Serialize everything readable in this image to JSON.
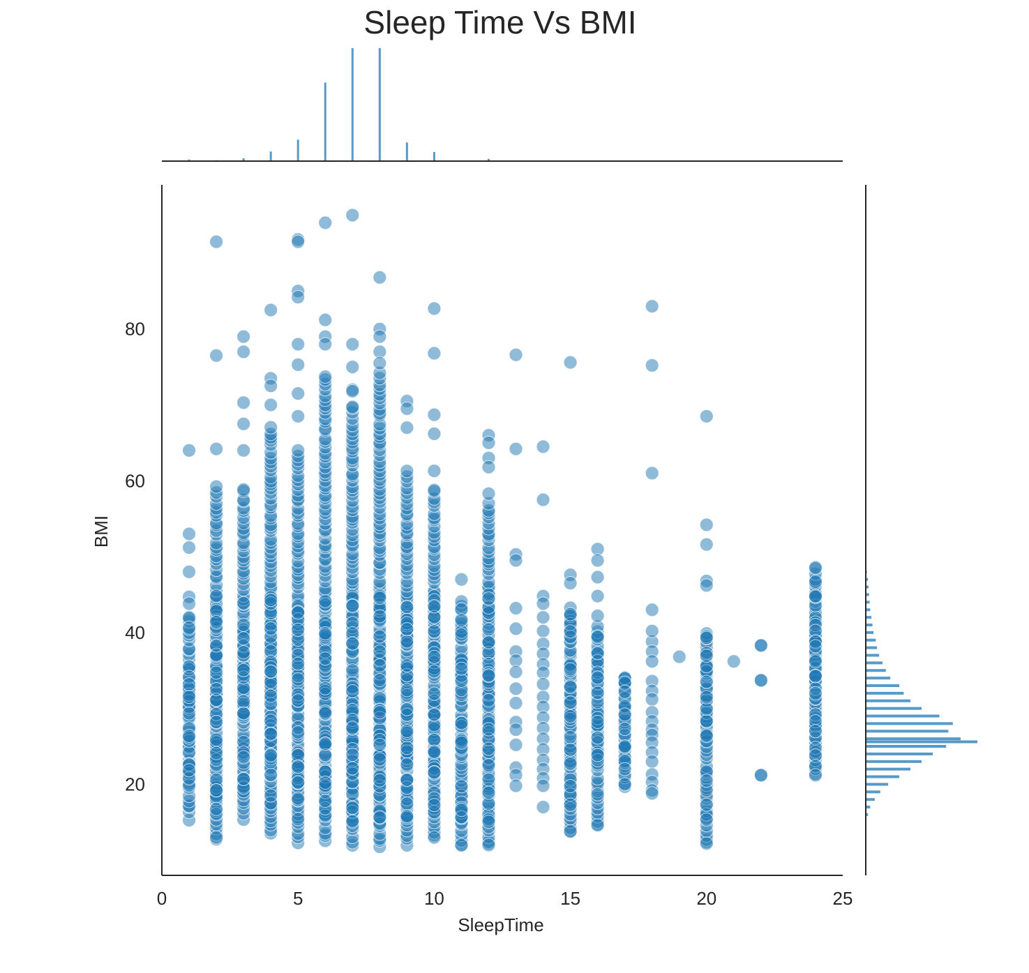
{
  "chart_data": {
    "type": "scatter",
    "title": "Sleep Time Vs BMI",
    "xlabel": "SleepTime",
    "ylabel": "BMI",
    "xlim": [
      0,
      25
    ],
    "ylim": [
      8,
      99
    ],
    "xticks": [
      "0",
      "5",
      "10",
      "15",
      "20",
      "25"
    ],
    "yticks": [
      "20",
      "40",
      "60",
      "80"
    ],
    "grid": false,
    "color": "#1f77b4",
    "point_opacity": 0.5,
    "sleep_time_values": [
      1,
      2,
      3,
      4,
      5,
      6,
      7,
      8,
      9,
      10,
      11,
      12,
      13,
      14,
      15,
      16,
      17,
      18,
      19,
      20,
      21,
      22,
      24
    ],
    "bmi_range_by_sleep_time": [
      {
        "x": 1,
        "min": 15.5,
        "max": 64
      },
      {
        "x": 2,
        "min": 13,
        "max": 91.5
      },
      {
        "x": 3,
        "min": 15.5,
        "max": 79
      },
      {
        "x": 4,
        "min": 13.5,
        "max": 82.5
      },
      {
        "x": 5,
        "min": 12.3,
        "max": 91.8
      },
      {
        "x": 6,
        "min": 12.5,
        "max": 94
      },
      {
        "x": 7,
        "min": 12,
        "max": 95
      },
      {
        "x": 8,
        "min": 11.8,
        "max": 86.8
      },
      {
        "x": 9,
        "min": 12,
        "max": 70.5
      },
      {
        "x": 10,
        "min": 13,
        "max": 82.7
      },
      {
        "x": 11,
        "min": 12,
        "max": 47
      },
      {
        "x": 12,
        "min": 12,
        "max": 66
      },
      {
        "x": 13,
        "min": 19.5,
        "max": 76.6
      },
      {
        "x": 14,
        "min": 17,
        "max": 64.5
      },
      {
        "x": 15,
        "min": 13.8,
        "max": 75.6
      },
      {
        "x": 16,
        "min": 14.5,
        "max": 51
      },
      {
        "x": 17,
        "min": 19.5,
        "max": 34
      },
      {
        "x": 18,
        "min": 18.5,
        "max": 83
      },
      {
        "x": 19,
        "min": 36.8,
        "max": 36.8
      },
      {
        "x": 20,
        "min": 12.2,
        "max": 68.5
      },
      {
        "x": 21,
        "min": 36.2,
        "max": 36.2
      },
      {
        "x": 22,
        "min": 21.2,
        "max": 38.3
      },
      {
        "x": 24,
        "min": 21.2,
        "max": 48.5
      }
    ],
    "outlier_points": [
      {
        "x": 2,
        "y": 91.5
      },
      {
        "x": 2,
        "y": 76.5
      },
      {
        "x": 2,
        "y": 64.2
      },
      {
        "x": 3,
        "y": 79
      },
      {
        "x": 3,
        "y": 77
      },
      {
        "x": 3,
        "y": 70.3
      },
      {
        "x": 3,
        "y": 67.5
      },
      {
        "x": 3,
        "y": 64
      },
      {
        "x": 4,
        "y": 82.5
      },
      {
        "x": 4,
        "y": 73.5
      },
      {
        "x": 4,
        "y": 72.5
      },
      {
        "x": 4,
        "y": 70
      },
      {
        "x": 5,
        "y": 91.8
      },
      {
        "x": 5,
        "y": 91.5
      },
      {
        "x": 5,
        "y": 85
      },
      {
        "x": 5,
        "y": 84.2
      },
      {
        "x": 5,
        "y": 78
      },
      {
        "x": 5,
        "y": 75.3
      },
      {
        "x": 5,
        "y": 71.5
      },
      {
        "x": 5,
        "y": 68.5
      },
      {
        "x": 6,
        "y": 94
      },
      {
        "x": 6,
        "y": 81.2
      },
      {
        "x": 6,
        "y": 79
      },
      {
        "x": 6,
        "y": 78
      },
      {
        "x": 7,
        "y": 95
      },
      {
        "x": 7,
        "y": 78
      },
      {
        "x": 7,
        "y": 75
      },
      {
        "x": 7,
        "y": 72
      },
      {
        "x": 7,
        "y": 71.8
      },
      {
        "x": 8,
        "y": 86.8
      },
      {
        "x": 8,
        "y": 80
      },
      {
        "x": 8,
        "y": 79
      },
      {
        "x": 8,
        "y": 77
      },
      {
        "x": 8,
        "y": 75.5
      },
      {
        "x": 9,
        "y": 70.5
      },
      {
        "x": 9,
        "y": 69.5
      },
      {
        "x": 9,
        "y": 67
      },
      {
        "x": 10,
        "y": 82.7
      },
      {
        "x": 10,
        "y": 76.8
      },
      {
        "x": 10,
        "y": 68.7
      },
      {
        "x": 10,
        "y": 66.2
      },
      {
        "x": 10,
        "y": 61.3
      },
      {
        "x": 11,
        "y": 47
      },
      {
        "x": 12,
        "y": 66
      },
      {
        "x": 12,
        "y": 65
      },
      {
        "x": 12,
        "y": 63
      },
      {
        "x": 12,
        "y": 61.8
      },
      {
        "x": 12,
        "y": 58.3
      },
      {
        "x": 13,
        "y": 76.6
      },
      {
        "x": 13,
        "y": 64.2
      },
      {
        "x": 13,
        "y": 50.3
      },
      {
        "x": 13,
        "y": 49.5
      },
      {
        "x": 14,
        "y": 64.5
      },
      {
        "x": 14,
        "y": 57.5
      },
      {
        "x": 15,
        "y": 75.6
      },
      {
        "x": 15,
        "y": 47.6
      },
      {
        "x": 15,
        "y": 46.5
      },
      {
        "x": 16,
        "y": 51
      },
      {
        "x": 16,
        "y": 49.5
      },
      {
        "x": 16,
        "y": 47.3
      },
      {
        "x": 16,
        "y": 44.8
      },
      {
        "x": 16,
        "y": 42.2
      },
      {
        "x": 16,
        "y": 14.6
      },
      {
        "x": 17,
        "y": 34
      },
      {
        "x": 17,
        "y": 33.4
      },
      {
        "x": 17,
        "y": 32.2
      },
      {
        "x": 17,
        "y": 30.3
      },
      {
        "x": 17,
        "y": 29.2
      },
      {
        "x": 17,
        "y": 27.3
      },
      {
        "x": 17,
        "y": 25
      },
      {
        "x": 17,
        "y": 22
      },
      {
        "x": 17,
        "y": 20
      },
      {
        "x": 18,
        "y": 83
      },
      {
        "x": 18,
        "y": 75.2
      },
      {
        "x": 18,
        "y": 61
      },
      {
        "x": 18,
        "y": 43
      },
      {
        "x": 18,
        "y": 40.2
      },
      {
        "x": 19,
        "y": 36.8
      },
      {
        "x": 20,
        "y": 68.5
      },
      {
        "x": 20,
        "y": 54.2
      },
      {
        "x": 20,
        "y": 51.6
      },
      {
        "x": 20,
        "y": 46.8
      },
      {
        "x": 20,
        "y": 46.2
      },
      {
        "x": 20,
        "y": 39.3
      },
      {
        "x": 20,
        "y": 17.3
      },
      {
        "x": 20,
        "y": 12.2
      },
      {
        "x": 21,
        "y": 36.2
      },
      {
        "x": 22,
        "y": 38.3
      },
      {
        "x": 22,
        "y": 33.7
      },
      {
        "x": 22,
        "y": 21.2
      },
      {
        "x": 24,
        "y": 48.5
      },
      {
        "x": 24,
        "y": 46.7
      },
      {
        "x": 24,
        "y": 44.8
      },
      {
        "x": 24,
        "y": 38.8
      },
      {
        "x": 24,
        "y": 38.2
      },
      {
        "x": 24,
        "y": 36.2
      },
      {
        "x": 24,
        "y": 32.6
      },
      {
        "x": 24,
        "y": 32
      },
      {
        "x": 24,
        "y": 29.2
      },
      {
        "x": 24,
        "y": 28.3
      },
      {
        "x": 24,
        "y": 27
      },
      {
        "x": 24,
        "y": 24.8
      },
      {
        "x": 24,
        "y": 23.8
      },
      {
        "x": 24,
        "y": 22.4
      },
      {
        "x": 24,
        "y": 21.2
      },
      {
        "x": 1,
        "y": 64
      },
      {
        "x": 1,
        "y": 53
      },
      {
        "x": 1,
        "y": 51.2
      },
      {
        "x": 1,
        "y": 48
      },
      {
        "x": 1,
        "y": 44.7
      },
      {
        "x": 1,
        "y": 43.8
      },
      {
        "x": 11,
        "y": 12
      },
      {
        "x": 12,
        "y": 12
      },
      {
        "x": 14,
        "y": 17
      },
      {
        "x": 15,
        "y": 13.8
      },
      {
        "x": 10,
        "y": 13
      },
      {
        "x": 2,
        "y": 13
      }
    ],
    "sparse_columns": {
      "13": [
        43.2,
        40.5,
        37.5,
        36.3,
        34.8,
        32.6,
        30.7,
        28.2,
        27.2,
        25.2,
        22.2,
        21.2,
        19.8
      ],
      "14": [
        44.8,
        43.8,
        42,
        40.2,
        38.5,
        37.2,
        35.8,
        34.7,
        33.2,
        31.5,
        30.2,
        28.8,
        27.4,
        26,
        24.6,
        23.2,
        22,
        20.8,
        19.8
      ],
      "18": [
        38.8,
        37.5,
        36.2,
        33.6,
        32.3,
        31.2,
        29.5,
        28.3,
        27.2,
        26.5,
        25.5,
        24.2,
        23,
        21.3,
        20.3,
        19.2,
        18.8
      ],
      "22": [
        38.3,
        33.7,
        21.2
      ]
    },
    "top_marginal": {
      "type": "histogram",
      "x": [
        1,
        2,
        3,
        4,
        5,
        6,
        7,
        8,
        9,
        10,
        11,
        12
      ],
      "heights": [
        0.015,
        0.008,
        0.025,
        0.085,
        0.19,
        0.695,
        1.0,
        1.0,
        0.165,
        0.08,
        0.005,
        0.02
      ]
    },
    "right_marginal": {
      "type": "histogram",
      "bmi_bins": [
        16,
        17,
        18,
        19,
        20,
        21,
        22,
        23,
        24,
        25,
        25.6,
        26,
        27,
        28,
        29,
        30,
        31,
        32,
        33,
        34,
        35,
        36,
        37,
        38,
        39,
        40,
        41,
        42,
        43,
        44,
        45,
        46,
        47,
        48
      ],
      "heights": [
        0.02,
        0.04,
        0.08,
        0.13,
        0.2,
        0.3,
        0.4,
        0.5,
        0.6,
        0.72,
        1.0,
        0.85,
        0.74,
        0.78,
        0.66,
        0.5,
        0.4,
        0.34,
        0.3,
        0.22,
        0.18,
        0.15,
        0.12,
        0.1,
        0.09,
        0.07,
        0.06,
        0.05,
        0.04,
        0.035,
        0.03,
        0.025,
        0.02,
        0.01
      ]
    }
  }
}
